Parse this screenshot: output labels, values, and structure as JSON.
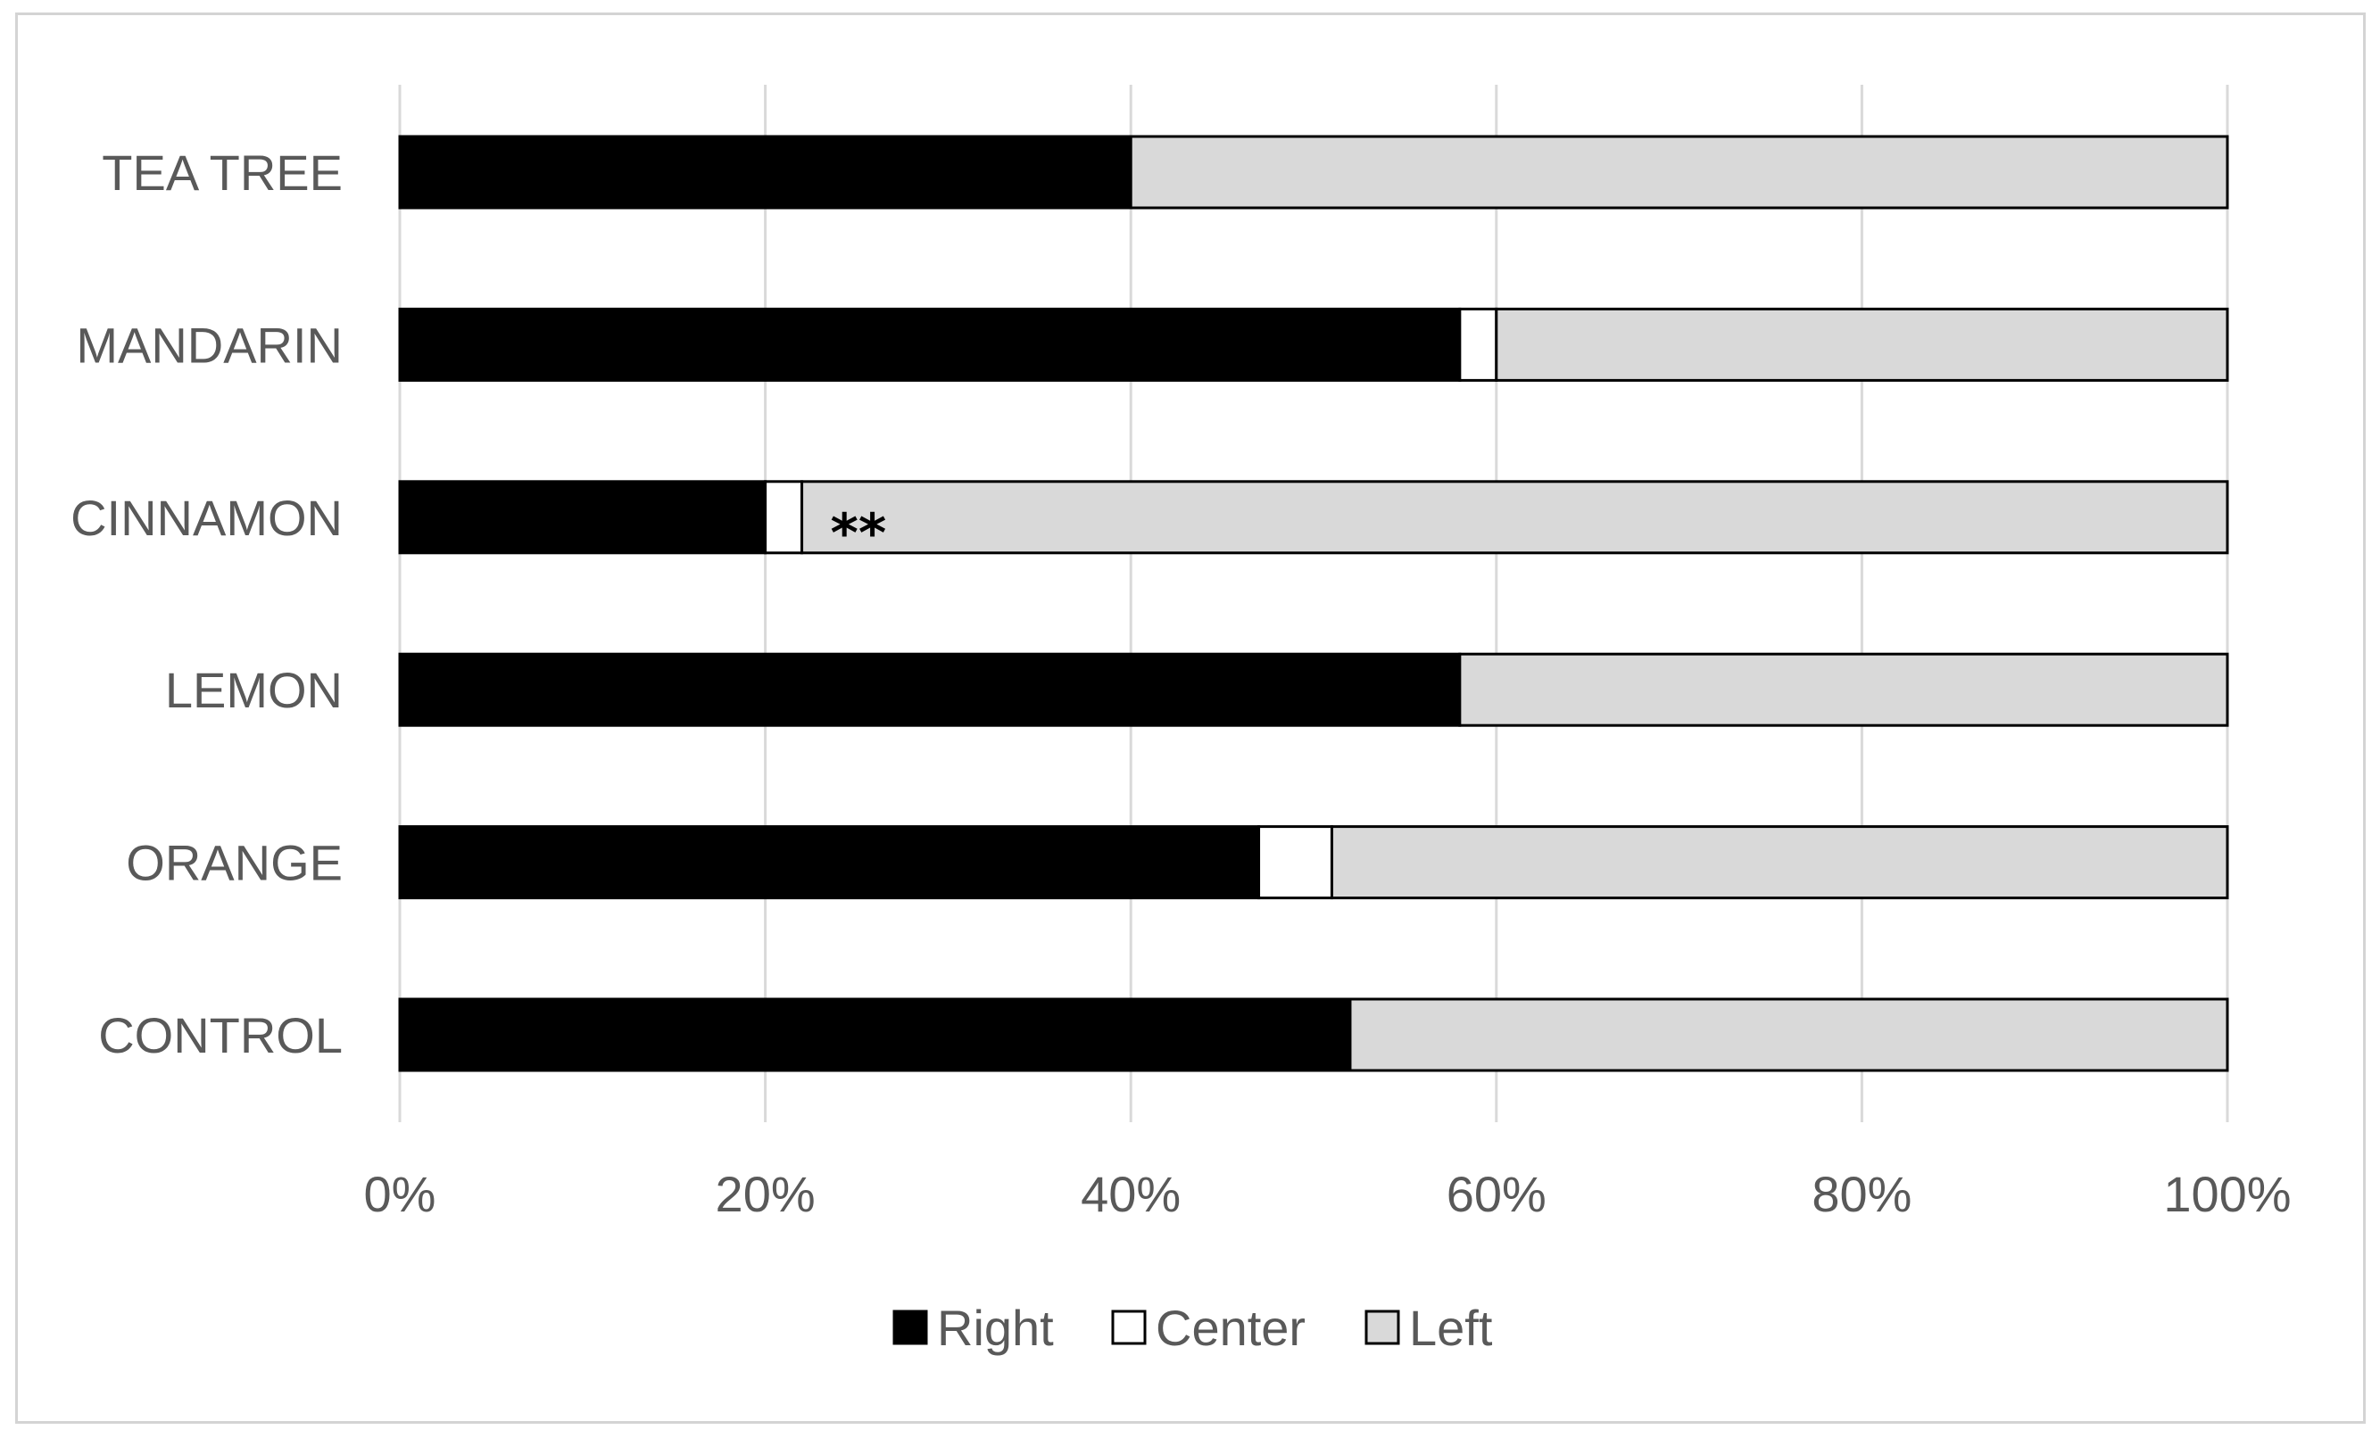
{
  "chart_data": {
    "type": "bar",
    "orientation": "horizontal",
    "stacked": "100%",
    "categories": [
      "TEA TREE",
      "MANDARIN",
      "CINNAMON",
      "LEMON",
      "ORANGE",
      "CONTROL"
    ],
    "series": [
      {
        "name": "Right",
        "color": "#000000",
        "values": [
          40,
          58,
          20,
          58,
          47,
          52
        ]
      },
      {
        "name": "Center",
        "color": "#ffffff",
        "values": [
          0,
          2,
          2,
          0,
          4,
          0
        ]
      },
      {
        "name": "Left",
        "color": "#d9d9d9",
        "values": [
          60,
          40,
          78,
          42,
          49,
          48
        ]
      }
    ],
    "x_ticks": [
      "0%",
      "20%",
      "40%",
      "60%",
      "80%",
      "100%"
    ],
    "xlim": [
      0,
      100
    ],
    "grid": "vertical",
    "legend_position": "bottom",
    "annotations": [
      {
        "category": "CINNAMON",
        "text": "**"
      }
    ],
    "title": "",
    "xlabel": "",
    "ylabel": ""
  }
}
